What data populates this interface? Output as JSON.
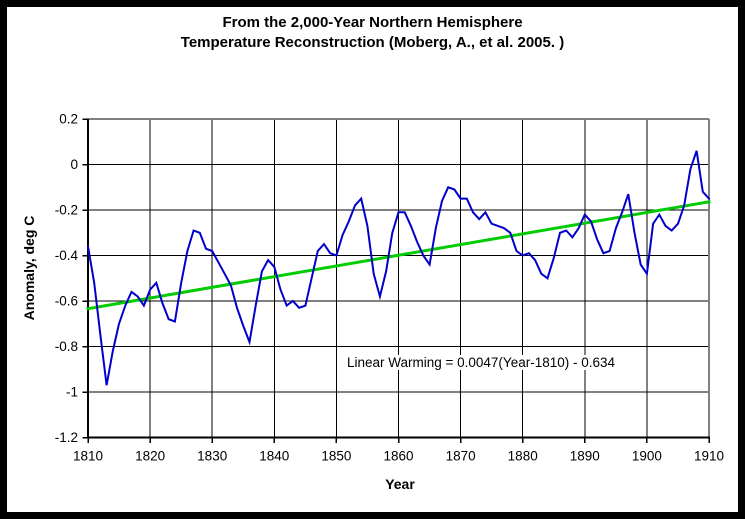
{
  "colors": {
    "series": "#0000CC",
    "trend": "#00CC00",
    "grid": "#000000",
    "axis": "#000000",
    "plot_border_gray": "#808080",
    "background": "#FFFFFF",
    "text": "#000000"
  },
  "chart_data": {
    "type": "line",
    "title": [
      "From the 2,000-Year Northern Hemisphere",
      "Temperature Reconstruction (Moberg, A., et al. 2005. )"
    ],
    "xlabel": "Year",
    "ylabel": "Anomaly, deg C",
    "annotation": "Linear Warming = 0.0047(Year-1810) - 0.634",
    "xlim": [
      1810,
      1910
    ],
    "ylim": [
      -1.2,
      0.2
    ],
    "x_ticks": [
      1810,
      1820,
      1830,
      1840,
      1850,
      1860,
      1870,
      1880,
      1890,
      1900,
      1910
    ],
    "y_ticks": [
      0.2,
      0,
      -0.2,
      -0.4,
      -0.6,
      -0.8,
      -1,
      -1.2
    ],
    "y_tick_labels": [
      "0.2",
      "0",
      "-0.2",
      "-0.4",
      "-0.6",
      "-0.8",
      "-1",
      "-1.2"
    ],
    "grid": true,
    "legend": "none",
    "series": [
      {
        "name": "Linear warming trend",
        "role": "trend",
        "color": "#00CC00",
        "equation": "Linear Warming = 0.0047(Year-1810) - 0.634",
        "x": [
          1810,
          1910
        ],
        "y": [
          -0.634,
          -0.164
        ]
      },
      {
        "name": "NH temperature anomaly reconstruction (annual)",
        "role": "data",
        "color": "#0000CC",
        "x": [
          1810,
          1811,
          1812,
          1813,
          1814,
          1815,
          1816,
          1817,
          1818,
          1819,
          1820,
          1821,
          1822,
          1823,
          1824,
          1825,
          1826,
          1827,
          1828,
          1829,
          1830,
          1831,
          1832,
          1833,
          1834,
          1835,
          1836,
          1837,
          1838,
          1839,
          1840,
          1841,
          1842,
          1843,
          1844,
          1845,
          1846,
          1847,
          1848,
          1849,
          1850,
          1851,
          1852,
          1853,
          1854,
          1855,
          1856,
          1857,
          1858,
          1859,
          1860,
          1861,
          1862,
          1863,
          1864,
          1865,
          1866,
          1867,
          1868,
          1869,
          1870,
          1871,
          1872,
          1873,
          1874,
          1875,
          1876,
          1877,
          1878,
          1879,
          1880,
          1881,
          1882,
          1883,
          1884,
          1885,
          1886,
          1887,
          1888,
          1889,
          1890,
          1891,
          1892,
          1893,
          1894,
          1895,
          1896,
          1897,
          1898,
          1899,
          1900,
          1901,
          1902,
          1903,
          1904,
          1905,
          1906,
          1907,
          1908,
          1909,
          1910
        ],
        "y": [
          -0.36,
          -0.52,
          -0.75,
          -0.97,
          -0.82,
          -0.7,
          -0.62,
          -0.56,
          -0.58,
          -0.62,
          -0.55,
          -0.52,
          -0.61,
          -0.68,
          -0.69,
          -0.52,
          -0.38,
          -0.29,
          -0.3,
          -0.37,
          -0.38,
          -0.43,
          -0.48,
          -0.53,
          -0.63,
          -0.71,
          -0.78,
          -0.62,
          -0.47,
          -0.42,
          -0.45,
          -0.55,
          -0.62,
          -0.6,
          -0.63,
          -0.62,
          -0.5,
          -0.38,
          -0.35,
          -0.39,
          -0.4,
          -0.31,
          -0.25,
          -0.18,
          -0.15,
          -0.27,
          -0.48,
          -0.58,
          -0.47,
          -0.3,
          -0.21,
          -0.21,
          -0.27,
          -0.34,
          -0.4,
          -0.44,
          -0.28,
          -0.16,
          -0.1,
          -0.11,
          -0.15,
          -0.15,
          -0.21,
          -0.24,
          -0.21,
          -0.26,
          -0.27,
          -0.28,
          -0.3,
          -0.38,
          -0.4,
          -0.39,
          -0.42,
          -0.48,
          -0.5,
          -0.41,
          -0.3,
          -0.29,
          -0.32,
          -0.28,
          -0.22,
          -0.25,
          -0.33,
          -0.39,
          -0.38,
          -0.28,
          -0.21,
          -0.13,
          -0.3,
          -0.44,
          -0.48,
          -0.26,
          -0.22,
          -0.27,
          -0.29,
          -0.26,
          -0.18,
          -0.02,
          0.06,
          -0.12,
          -0.15
        ]
      }
    ]
  }
}
